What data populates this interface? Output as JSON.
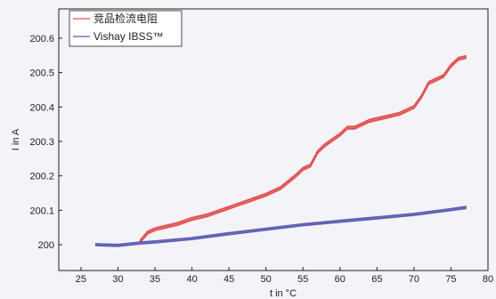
{
  "chart_data": {
    "type": "line",
    "xlabel": "t in °C",
    "ylabel": "I in A",
    "xlim": [
      22,
      80
    ],
    "ylim": [
      199.925,
      200.685
    ],
    "xticks": [
      25,
      30,
      35,
      40,
      45,
      50,
      55,
      60,
      65,
      70,
      75,
      80
    ],
    "yticks": [
      200,
      200.1,
      200.2,
      200.3,
      200.4,
      200.5,
      200.6
    ],
    "ytick_labels": [
      "200",
      "200.1",
      "200.2",
      "200.3",
      "200.4",
      "200.5",
      "200.6"
    ],
    "grid": false,
    "legend_position": "top-left",
    "series": [
      {
        "name": "竞品检流电阻",
        "color": "#e0504f",
        "band_width": 0.008,
        "x": [
          33,
          34,
          35,
          36,
          38,
          40,
          42,
          44,
          46,
          48,
          50,
          52,
          54,
          55,
          56,
          57,
          58,
          60,
          61,
          62,
          64,
          66,
          68,
          70,
          71,
          72,
          73,
          74,
          75,
          76,
          77
        ],
        "y": [
          200.01,
          200.035,
          200.045,
          200.05,
          200.06,
          200.075,
          200.085,
          200.1,
          200.115,
          200.13,
          200.145,
          200.165,
          200.2,
          200.22,
          200.23,
          200.27,
          200.29,
          200.32,
          200.34,
          200.34,
          200.36,
          200.37,
          200.38,
          200.4,
          200.43,
          200.47,
          200.48,
          200.49,
          200.52,
          200.54,
          200.545
        ]
      },
      {
        "name": "Vishay IBSS™",
        "color": "#5a5ab4",
        "band_width": 0.006,
        "x": [
          27,
          30,
          33,
          35,
          40,
          45,
          50,
          55,
          60,
          65,
          70,
          75,
          77
        ],
        "y": [
          200.0,
          199.998,
          200.005,
          200.008,
          200.018,
          200.032,
          200.045,
          200.058,
          200.068,
          200.078,
          200.088,
          200.102,
          200.108
        ]
      }
    ]
  }
}
